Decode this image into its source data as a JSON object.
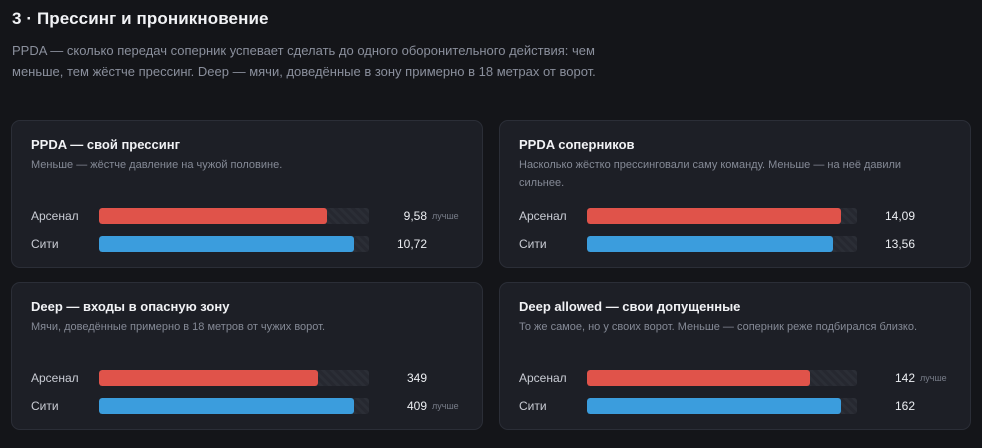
{
  "section": {
    "title": "3 · Прессинг и проникновение",
    "description": "PPDA — сколько передач соперник успевает сделать до одного оборонительного действия: чем меньше, тем жёстче прессинг. Deep — мячи, доведённые в зону примерно в 18 метрах от ворот."
  },
  "colors": {
    "arsenal": "#e0534a",
    "city": "#3b9ddd"
  },
  "cards": [
    {
      "title": "PPDA — свой прессинг",
      "description": "Меньше — жёстче давление на чужой половине.",
      "rows": [
        {
          "team": "Арсенал",
          "value": "9,58",
          "badge": "лучше",
          "fill": 0.845,
          "color": "red"
        },
        {
          "team": "Сити",
          "value": "10,72",
          "badge": "",
          "fill": 0.945,
          "color": "blue"
        }
      ]
    },
    {
      "title": "PPDA соперников",
      "description": "Насколько жёстко прессинговали саму команду. Меньше — на неё давили сильнее.",
      "rows": [
        {
          "team": "Арсенал",
          "value": "14,09",
          "badge": "",
          "fill": 0.94,
          "color": "red"
        },
        {
          "team": "Сити",
          "value": "13,56",
          "badge": "",
          "fill": 0.91,
          "color": "blue"
        }
      ]
    },
    {
      "title": "Deep — входы в опасную зону",
      "description": "Мячи, доведённые примерно в 18 метров от чужих ворот.",
      "rows": [
        {
          "team": "Арсенал",
          "value": "349",
          "badge": "",
          "fill": 0.81,
          "color": "red"
        },
        {
          "team": "Сити",
          "value": "409",
          "badge": "лучше",
          "fill": 0.945,
          "color": "blue"
        }
      ]
    },
    {
      "title": "Deep allowed — свои допущенные",
      "description": "То же самое, но у своих ворот. Меньше — соперник реже подбирался близко.",
      "rows": [
        {
          "team": "Арсенал",
          "value": "142",
          "badge": "лучше",
          "fill": 0.825,
          "color": "red"
        },
        {
          "team": "Сити",
          "value": "162",
          "badge": "",
          "fill": 0.94,
          "color": "blue"
        }
      ]
    }
  ]
}
